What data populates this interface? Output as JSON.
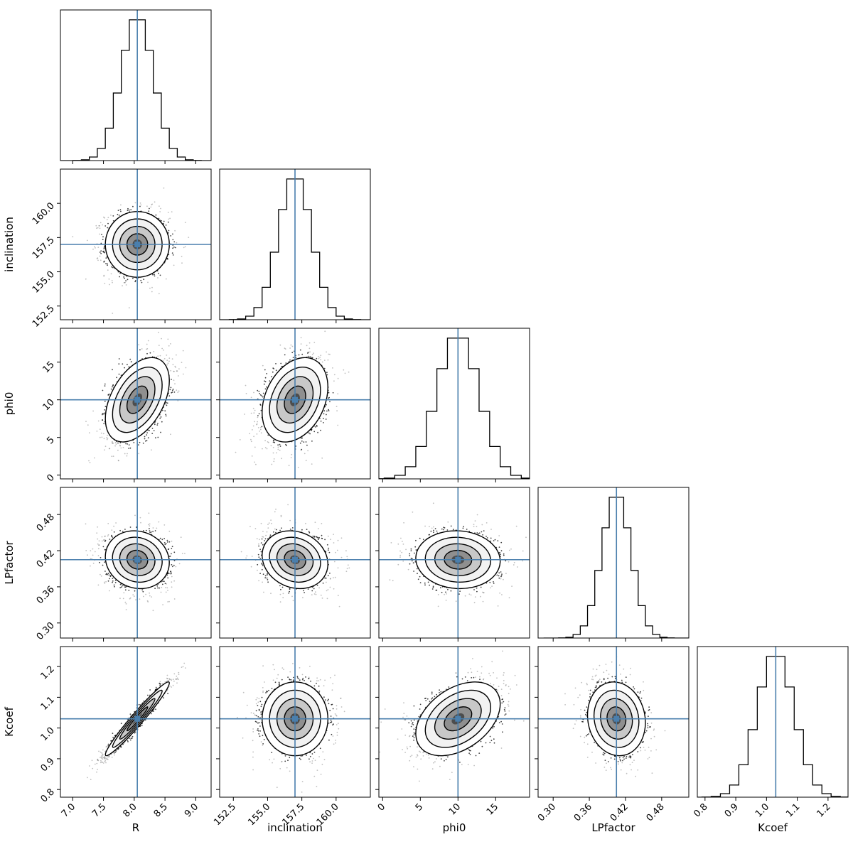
{
  "chart_data": {
    "type": "corner",
    "parameters": [
      {
        "name": "R",
        "truth": 8.05,
        "lim": [
          6.8,
          9.25
        ],
        "ticks": [
          7.0,
          7.5,
          8.0,
          8.5,
          9.0
        ],
        "tick_labels": [
          "7.0",
          "7.5",
          "8.0",
          "8.5",
          "9.0"
        ],
        "mean": 8.05,
        "std": 0.26
      },
      {
        "name": "inclination",
        "truth": 157.0,
        "lim": [
          151.5,
          162.5
        ],
        "ticks": [
          152.5,
          155.0,
          157.5,
          160.0
        ],
        "tick_labels": [
          "152.5",
          "155.0",
          "157.5",
          "160.0"
        ],
        "mean": 157.0,
        "std": 1.2
      },
      {
        "name": "phi0",
        "truth": 10.0,
        "lim": [
          -0.5,
          19.5
        ],
        "ticks": [
          0,
          5,
          10,
          15
        ],
        "tick_labels": [
          "0",
          "5",
          "10",
          "15"
        ],
        "mean": 10.0,
        "std": 2.8
      },
      {
        "name": "LPfactor",
        "truth": 0.405,
        "lim": [
          0.275,
          0.525
        ],
        "ticks": [
          0.3,
          0.36,
          0.42,
          0.48
        ],
        "tick_labels": [
          "0.30",
          "0.36",
          "0.42",
          "0.48"
        ],
        "mean": 0.405,
        "std": 0.024
      },
      {
        "name": "Kcoef",
        "truth": 1.03,
        "lim": [
          0.775,
          1.265
        ],
        "ticks": [
          0.8,
          0.9,
          1.0,
          1.1,
          1.2
        ],
        "tick_labels": [
          "0.8",
          "0.9",
          "1.0",
          "1.1",
          "1.2"
        ],
        "mean": 1.03,
        "std": 0.06
      }
    ],
    "correlations": [
      {
        "pair": [
          "R",
          "inclination"
        ],
        "rho": 0.0
      },
      {
        "pair": [
          "R",
          "phi0"
        ],
        "rho": 0.45
      },
      {
        "pair": [
          "inclination",
          "phi0"
        ],
        "rho": 0.3
      },
      {
        "pair": [
          "R",
          "LPfactor"
        ],
        "rho": -0.1
      },
      {
        "pair": [
          "inclination",
          "LPfactor"
        ],
        "rho": -0.15
      },
      {
        "pair": [
          "phi0",
          "LPfactor"
        ],
        "rho": -0.05
      },
      {
        "pair": [
          "R",
          "Kcoef"
        ],
        "rho": 0.97
      },
      {
        "pair": [
          "inclination",
          "Kcoef"
        ],
        "rho": 0.0
      },
      {
        "pair": [
          "phi0",
          "Kcoef"
        ],
        "rho": 0.4
      },
      {
        "pair": [
          "LPfactor",
          "Kcoef"
        ],
        "rho": -0.1
      }
    ],
    "histogram_bins": 20,
    "truth_line_color": "#4a7fad",
    "contour_color": "#000000"
  }
}
